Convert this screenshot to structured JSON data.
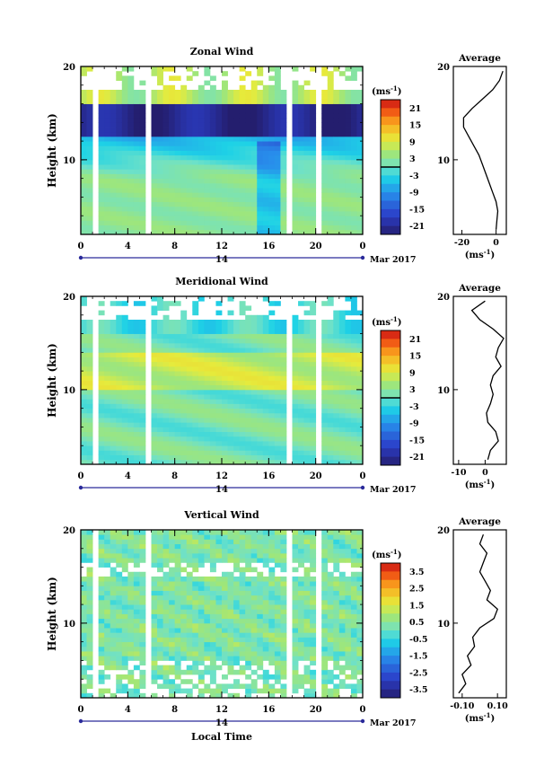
{
  "chart_data": [
    {
      "type": "heatmap",
      "title": "Zonal Wind",
      "ylabel": "Height (km)",
      "xlabel": "",
      "x_ticks": [
        "0",
        "4",
        "8",
        "12",
        "16",
        "20",
        "0"
      ],
      "y_ticks": [
        "10",
        "20"
      ],
      "xlim": [
        0,
        24
      ],
      "ylim": [
        2,
        20
      ],
      "date_day": "14",
      "date_month": "Mar 2017",
      "colorbar": {
        "unit_base": "(ms",
        "unit_exp": "-1",
        "unit_close": ")",
        "ticks": [
          "21",
          "15",
          "9",
          "3",
          "-3",
          "-9",
          "-15",
          "-21"
        ],
        "range": [
          -24,
          24
        ]
      },
      "field": {
        "low_mean": 3,
        "jet_peak": -22,
        "jet_layer": [
          12.5,
          16
        ],
        "upper": 6
      },
      "profile": {
        "title": "Average",
        "x_ticks": [
          "-20",
          "0"
        ],
        "xlim": [
          -25,
          6
        ],
        "xlabel_base": "(ms",
        "xlabel_exp": "-1",
        "xlabel_close": ")",
        "y_ticks": [
          "10",
          "20"
        ],
        "heights": [
          2.5,
          3.5,
          4.5,
          5.5,
          6.5,
          7.5,
          8.5,
          9.5,
          10.5,
          11.5,
          12.5,
          13.5,
          14.5,
          15.5,
          16.5,
          17.5,
          18.5,
          19.5
        ],
        "values": [
          0,
          0.5,
          1,
          0,
          -2,
          -4,
          -6,
          -8,
          -10,
          -13,
          -16,
          -19,
          -19,
          -14,
          -8,
          -2,
          2,
          4
        ]
      }
    },
    {
      "type": "heatmap",
      "title": "Meridional Wind",
      "ylabel": "Height (km)",
      "xlabel": "",
      "x_ticks": [
        "0",
        "4",
        "8",
        "12",
        "16",
        "20",
        "0"
      ],
      "y_ticks": [
        "10",
        "20"
      ],
      "xlim": [
        0,
        24
      ],
      "ylim": [
        2,
        20
      ],
      "date_day": "14",
      "date_month": "Mar 2017",
      "colorbar": {
        "unit_base": "(ms",
        "unit_exp": "-1",
        "unit_close": ")",
        "ticks": [
          "21",
          "15",
          "9",
          "3",
          "-3",
          "-9",
          "-15",
          "-21"
        ],
        "range": [
          -24,
          24
        ]
      },
      "field": {
        "low_mean": 1,
        "band_max": 9,
        "band_height": 12,
        "upper": -2
      },
      "profile": {
        "title": "Average",
        "x_ticks": [
          "-10",
          "0"
        ],
        "xlim": [
          -12,
          8
        ],
        "xlabel_base": "(ms",
        "xlabel_exp": "-1",
        "xlabel_close": ")",
        "y_ticks": [
          "10",
          "20"
        ],
        "heights": [
          2.5,
          3.5,
          4.5,
          5.5,
          6.5,
          7.5,
          8.5,
          9.5,
          10.5,
          11.5,
          12.5,
          13.5,
          14.5,
          15.5,
          16.5,
          17.5,
          18.5,
          19.5
        ],
        "values": [
          1,
          2,
          5,
          4,
          1,
          0.5,
          2,
          3,
          2,
          3,
          6,
          4,
          5,
          7,
          3,
          -2,
          -5,
          0
        ]
      }
    },
    {
      "type": "heatmap",
      "title": "Vertical Wind",
      "ylabel": "Height (km)",
      "xlabel": "Local Time",
      "x_ticks": [
        "0",
        "4",
        "8",
        "12",
        "16",
        "20",
        "0"
      ],
      "y_ticks": [
        "10",
        "20"
      ],
      "xlim": [
        0,
        24
      ],
      "ylim": [
        2,
        20
      ],
      "date_day": "14",
      "date_month": "Mar 2017",
      "colorbar": {
        "unit_base": "(ms",
        "unit_exp": "-1",
        "unit_close": ")",
        "ticks": [
          "3.5",
          "2.5",
          "1.5",
          "0.5",
          "-0.5",
          "-1.5",
          "-2.5",
          "-3.5"
        ],
        "range": [
          -4,
          4
        ]
      },
      "field": {
        "mean": 0.3,
        "spread": 0.4
      },
      "profile": {
        "title": "Average",
        "x_ticks": [
          "-0.10",
          "0.10"
        ],
        "xlim": [
          -0.15,
          0.15
        ],
        "xlabel_base": "(ms",
        "xlabel_exp": "-1",
        "xlabel_close": ")",
        "y_ticks": [
          "10",
          "20"
        ],
        "heights": [
          2.5,
          3.5,
          4.5,
          5.5,
          6.5,
          7.5,
          8.5,
          9.5,
          10.5,
          11.5,
          12.5,
          13.5,
          14.5,
          15.5,
          16.5,
          17.5,
          18.5,
          19.5
        ],
        "values": [
          -0.12,
          -0.08,
          -0.1,
          -0.05,
          -0.07,
          -0.03,
          -0.04,
          0.0,
          0.08,
          0.1,
          0.04,
          0.06,
          0.03,
          0.0,
          0.02,
          0.04,
          0.0,
          0.02
        ]
      }
    }
  ]
}
